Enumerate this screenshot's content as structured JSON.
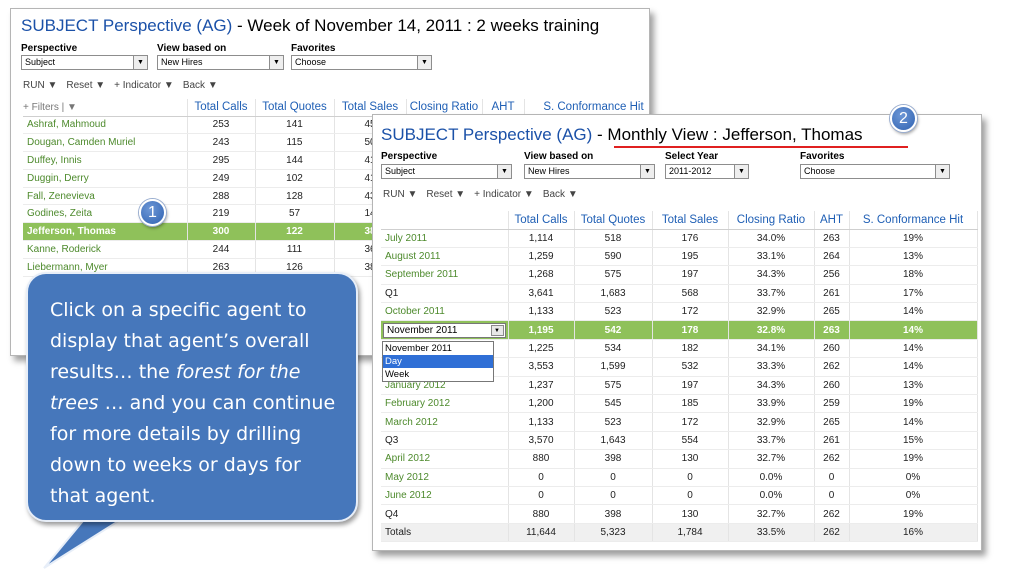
{
  "window1": {
    "title_prefix": "SUBJECT Perspective (AG)",
    "title_suffix": " - Week of November 14, 2011 : 2 weeks training",
    "perspective_label": "Perspective",
    "perspective_value": "Subject",
    "view_label": "View based on",
    "view_value": "New Hires",
    "favorites_label": "Favorites",
    "favorites_value": "Choose",
    "toolbar": [
      "RUN ▼",
      "Reset ▼",
      "+ Indicator ▼",
      "Back ▼"
    ],
    "filters_label": "+ Filters  |  ▼",
    "columns": [
      "Total Calls",
      "Total Quotes",
      "Total Sales",
      "Closing Ratio",
      "AHT",
      "S. Conformance Hit"
    ],
    "rows": [
      {
        "name": "Ashraf, Mahmoud",
        "calls": "253",
        "quotes": "141",
        "sales": "45"
      },
      {
        "name": "Dougan, Camden Muriel",
        "calls": "243",
        "quotes": "115",
        "sales": "50"
      },
      {
        "name": "Duffey, Innis",
        "calls": "295",
        "quotes": "144",
        "sales": "41"
      },
      {
        "name": "Duggin, Derry",
        "calls": "249",
        "quotes": "102",
        "sales": "41"
      },
      {
        "name": "Fall, Zenevieva",
        "calls": "288",
        "quotes": "128",
        "sales": "43"
      },
      {
        "name": "Godines, Zeita",
        "calls": "219",
        "quotes": "57",
        "sales": "14"
      },
      {
        "name": "Jefferson, Thomas",
        "calls": "300",
        "quotes": "122",
        "sales": "38",
        "highlight": true
      },
      {
        "name": "Kanne, Roderick",
        "calls": "244",
        "quotes": "111",
        "sales": "36"
      },
      {
        "name": "Liebermann, Myer",
        "calls": "263",
        "quotes": "126",
        "sales": "38"
      }
    ]
  },
  "window2": {
    "title_prefix": "SUBJECT Perspective (AG)",
    "title_dash": " - ",
    "title_suffix": "Monthly View : Jefferson, Thomas",
    "perspective_label": "Perspective",
    "perspective_value": "Subject",
    "view_label": "View based on",
    "view_value": "New Hires",
    "year_label": "Select Year",
    "year_value": "2011-2012",
    "favorites_label": "Favorites",
    "favorites_value": "Choose",
    "toolbar": [
      "RUN ▼",
      "Reset ▼",
      "+ Indicator ▼",
      "Back ▼"
    ],
    "columns": [
      "Total Calls",
      "Total Quotes",
      "Total Sales",
      "Closing Ratio",
      "AHT",
      "S. Conformance Hit"
    ],
    "rows": [
      {
        "name": "July 2011",
        "v": [
          "1,114",
          "518",
          "176",
          "34.0%",
          "263",
          "19%"
        ]
      },
      {
        "name": "August 2011",
        "v": [
          "1,259",
          "590",
          "195",
          "33.1%",
          "264",
          "13%"
        ]
      },
      {
        "name": "September 2011",
        "v": [
          "1,268",
          "575",
          "197",
          "34.3%",
          "256",
          "18%"
        ]
      },
      {
        "name": "Q1",
        "plain": true,
        "v": [
          "3,641",
          "1,683",
          "568",
          "33.7%",
          "261",
          "17%"
        ]
      },
      {
        "name": "October 2011",
        "v": [
          "1,133",
          "523",
          "172",
          "32.9%",
          "265",
          "14%"
        ]
      },
      {
        "name": "November 2011",
        "dropdown": true,
        "highlight": true,
        "v": [
          "1,195",
          "542",
          "178",
          "32.8%",
          "263",
          "14%"
        ]
      },
      {
        "name": "",
        "v": [
          "1,225",
          "534",
          "182",
          "34.1%",
          "260",
          "14%"
        ]
      },
      {
        "name": "",
        "v": [
          "3,553",
          "1,599",
          "532",
          "33.3%",
          "262",
          "14%"
        ]
      },
      {
        "name": "January 2012",
        "v": [
          "1,237",
          "575",
          "197",
          "34.3%",
          "260",
          "13%"
        ]
      },
      {
        "name": "February 2012",
        "v": [
          "1,200",
          "545",
          "185",
          "33.9%",
          "259",
          "19%"
        ]
      },
      {
        "name": "March 2012",
        "v": [
          "1,133",
          "523",
          "172",
          "32.9%",
          "265",
          "14%"
        ]
      },
      {
        "name": "Q3",
        "plain": true,
        "v": [
          "3,570",
          "1,643",
          "554",
          "33.7%",
          "261",
          "15%"
        ]
      },
      {
        "name": "April 2012",
        "v": [
          "880",
          "398",
          "130",
          "32.7%",
          "262",
          "19%"
        ]
      },
      {
        "name": "May 2012",
        "v": [
          "0",
          "0",
          "0",
          "0.0%",
          "0",
          "0%"
        ]
      },
      {
        "name": "June 2012",
        "v": [
          "0",
          "0",
          "0",
          "0.0%",
          "0",
          "0%"
        ]
      },
      {
        "name": "Q4",
        "plain": true,
        "v": [
          "880",
          "398",
          "130",
          "32.7%",
          "262",
          "19%"
        ]
      },
      {
        "name": "Totals",
        "plain": true,
        "total": true,
        "v": [
          "11,644",
          "5,323",
          "1,784",
          "33.5%",
          "262",
          "16%"
        ]
      }
    ],
    "dropdown_options": [
      "November 2011",
      "Day",
      "Week"
    ],
    "dropdown_selected": "Day"
  },
  "badges": [
    "1",
    "2"
  ],
  "callout": {
    "part1": "Click on a specific agent to display that agent’s overall results… the ",
    "italic": "forest for the trees",
    "part2": " … and you can continue for more details by drilling down to weeks or days for that agent."
  }
}
